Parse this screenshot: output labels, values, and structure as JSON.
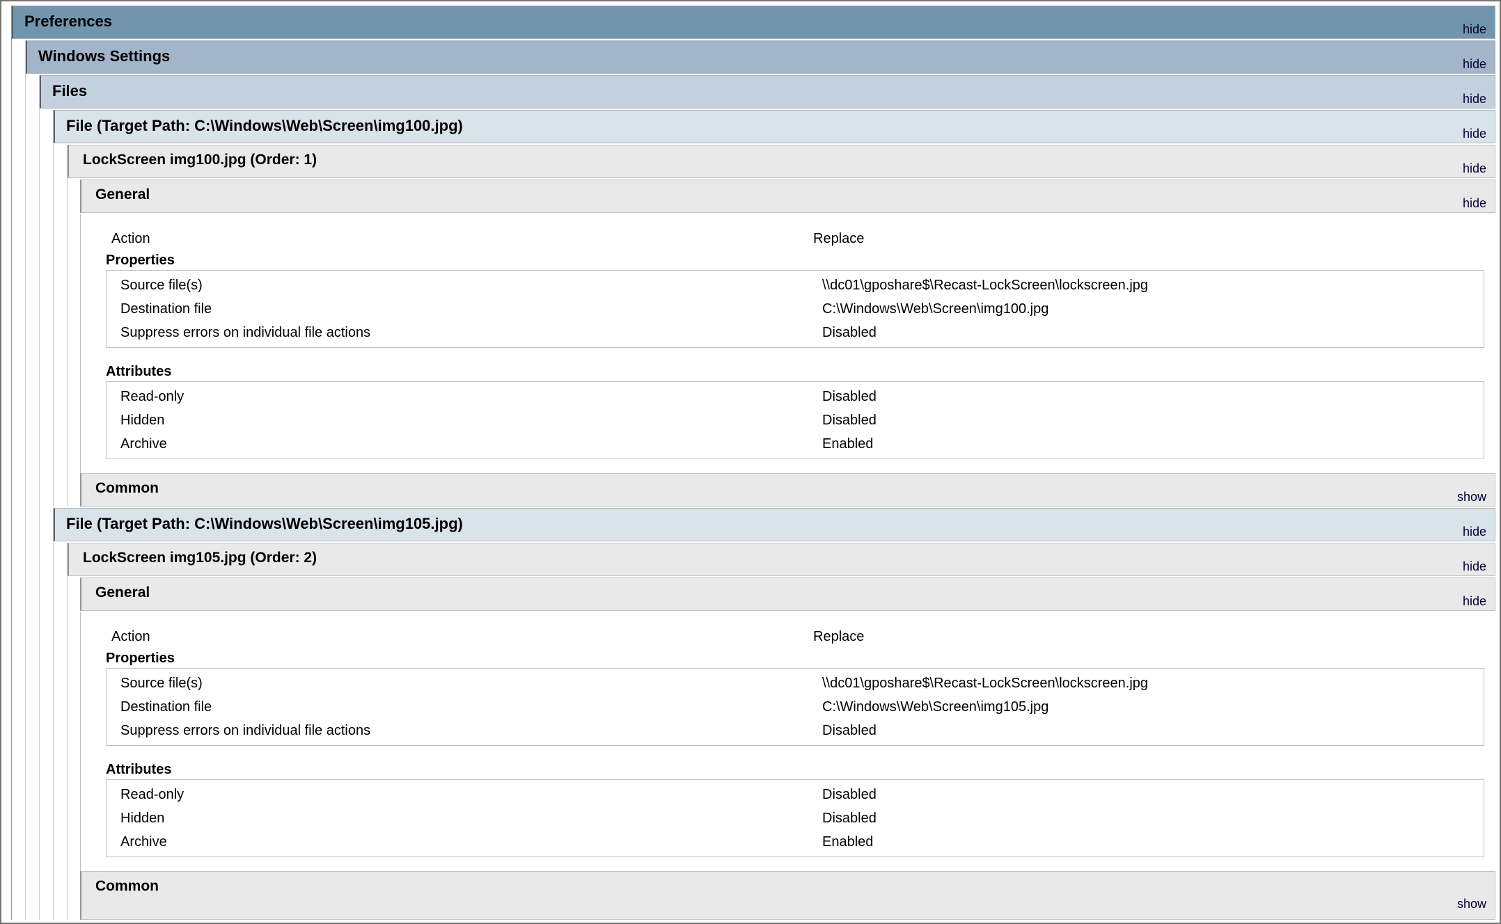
{
  "report": {
    "preferences": {
      "title": "Preferences",
      "toggle": "hide"
    },
    "windows_settings": {
      "title": "Windows Settings",
      "toggle": "hide"
    },
    "files": {
      "title": "Files",
      "toggle": "hide"
    },
    "file_entries": [
      {
        "header": "File (Target Path: C:\\Windows\\Web\\Screen\\img100.jpg)",
        "header_toggle": "hide",
        "item_title": "LockScreen img100.jpg (Order: 1)",
        "item_toggle": "hide",
        "general": {
          "title": "General",
          "toggle": "hide",
          "action_label": "Action",
          "action_value": "Replace",
          "properties_label": "Properties",
          "properties_rows": [
            {
              "label": "Source file(s)",
              "value": "\\\\dc01\\gposhare$\\Recast-LockScreen\\lockscreen.jpg"
            },
            {
              "label": "Destination file",
              "value": "C:\\Windows\\Web\\Screen\\img100.jpg"
            },
            {
              "label": "Suppress errors on individual file actions",
              "value": "Disabled"
            }
          ],
          "attributes_label": "Attributes",
          "attributes_rows": [
            {
              "label": "Read-only",
              "value": "Disabled"
            },
            {
              "label": "Hidden",
              "value": "Disabled"
            },
            {
              "label": "Archive",
              "value": "Enabled"
            }
          ]
        },
        "common": {
          "title": "Common",
          "toggle": "show"
        }
      },
      {
        "header": "File (Target Path: C:\\Windows\\Web\\Screen\\img105.jpg)",
        "header_toggle": "hide",
        "item_title": "LockScreen img105.jpg (Order: 2)",
        "item_toggle": "hide",
        "general": {
          "title": "General",
          "toggle": "hide",
          "action_label": "Action",
          "action_value": "Replace",
          "properties_label": "Properties",
          "properties_rows": [
            {
              "label": "Source file(s)",
              "value": "\\\\dc01\\gposhare$\\Recast-LockScreen\\lockscreen.jpg"
            },
            {
              "label": "Destination file",
              "value": "C:\\Windows\\Web\\Screen\\img105.jpg"
            },
            {
              "label": "Suppress errors on individual file actions",
              "value": "Disabled"
            }
          ],
          "attributes_label": "Attributes",
          "attributes_rows": [
            {
              "label": "Read-only",
              "value": "Disabled"
            },
            {
              "label": "Hidden",
              "value": "Disabled"
            },
            {
              "label": "Archive",
              "value": "Enabled"
            }
          ]
        },
        "common": {
          "title": "Common",
          "toggle": "show"
        }
      }
    ]
  },
  "colors": {
    "band_preferences": "#7295ae",
    "band_windows_settings": "#a3b5c8",
    "band_files": "#c2d1dd",
    "band_file": "#d8e3ea",
    "band_item_gray": "#e9e9e9",
    "page_border": "#747474",
    "toggle_link": "#000033"
  }
}
